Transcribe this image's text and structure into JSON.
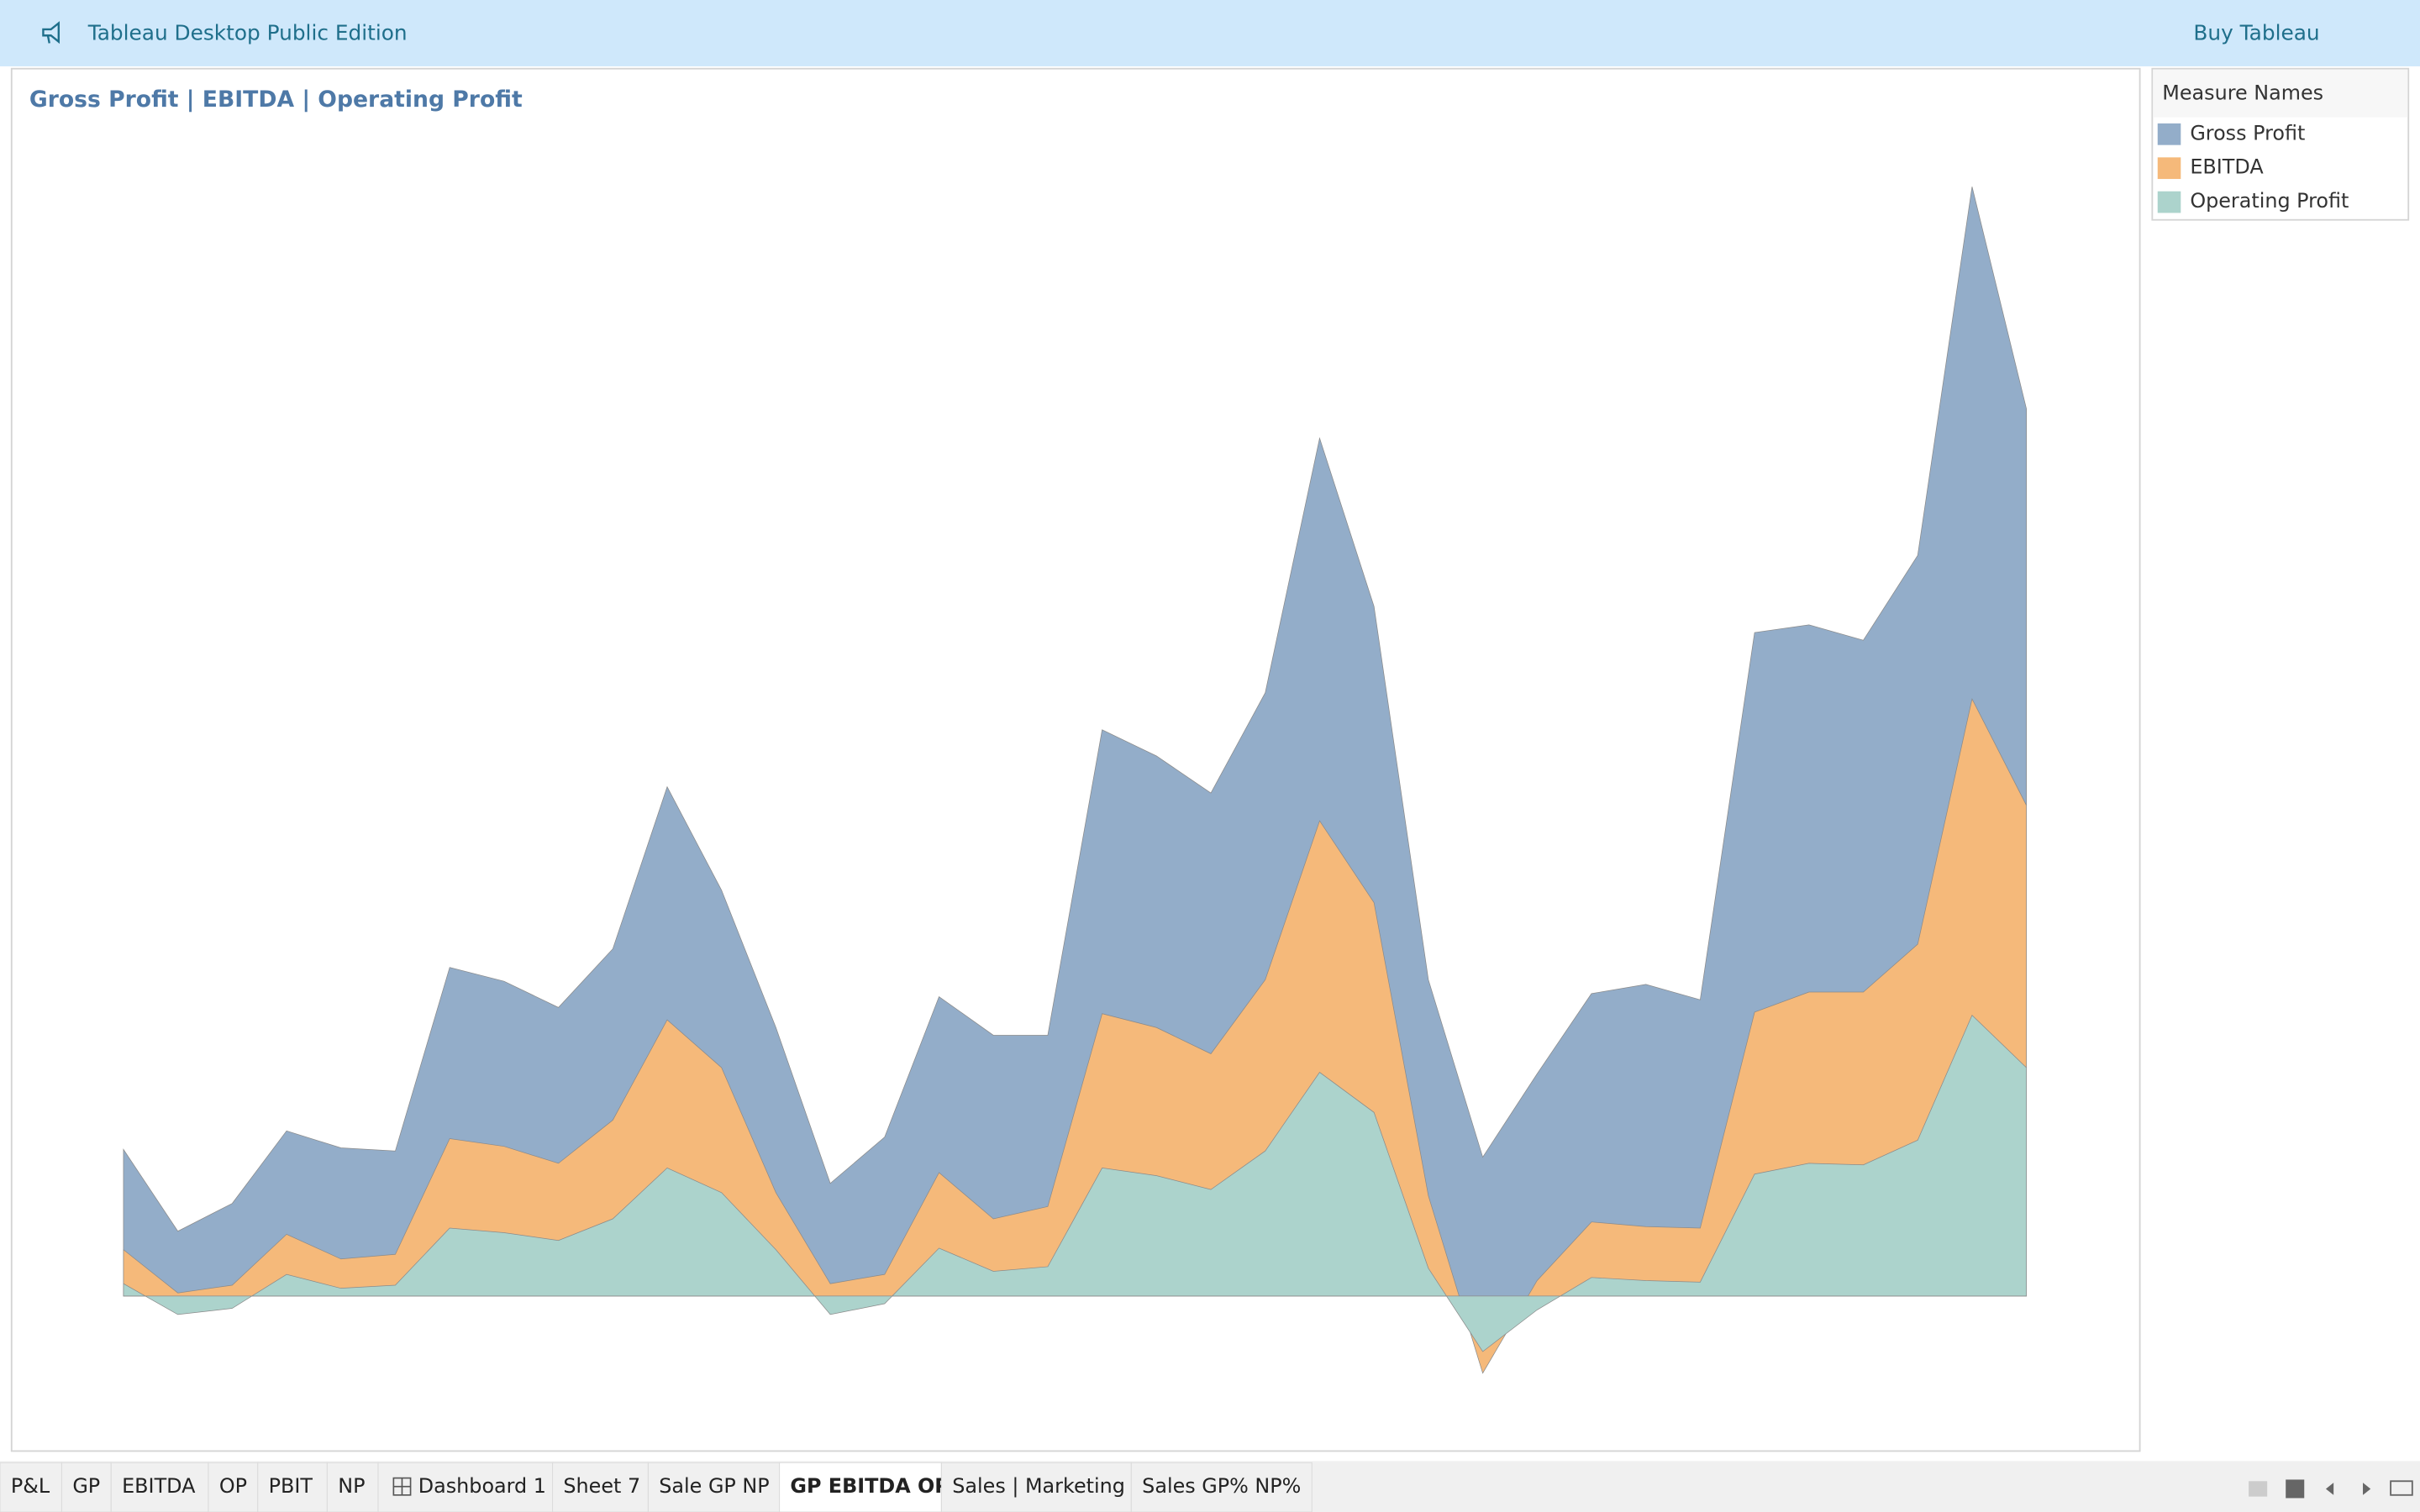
{
  "header": {
    "title": "Tableau Desktop Public Edition",
    "button": "Buy Tableau"
  },
  "chart_data": {
    "type": "area",
    "title": "Gross Profit | EBITDA | Operating Profit",
    "legend_title": "Measure Names",
    "legend": "right",
    "categories": [
      null,
      null,
      null,
      null,
      null,
      null,
      null,
      null,
      null,
      null,
      null,
      null,
      null,
      null,
      null,
      null,
      null,
      null,
      null,
      null,
      null,
      null,
      null,
      null,
      null,
      null,
      null,
      null,
      null,
      null,
      null,
      null,
      null,
      null,
      null,
      null
    ],
    "ylim": [
      -90,
      745
    ],
    "series": [
      {
        "name": "Gross Profit",
        "color": "#93adc9",
        "values": [
          95,
          42,
          60,
          107,
          96,
          94,
          213,
          204,
          187,
          225,
          330,
          263,
          174,
          73,
          103,
          194,
          169,
          169,
          367,
          350,
          326,
          391,
          556,
          447,
          205,
          90,
          144,
          196,
          202,
          192,
          430,
          435,
          425,
          480,
          719,
          575
        ]
      },
      {
        "name": "EBITDA",
        "color": "#f5b97a",
        "values": [
          30,
          2,
          7,
          40,
          24,
          27,
          102,
          97,
          86,
          114,
          179,
          148,
          67,
          8,
          14,
          80,
          50,
          58,
          183,
          174,
          157,
          205,
          308,
          255,
          65,
          -50,
          10,
          48,
          45,
          44,
          184,
          197,
          197,
          228,
          387,
          318
        ]
      },
      {
        "name": "Operating Profit",
        "color": "#acd3cc",
        "values": [
          8,
          -12,
          -8,
          14,
          5,
          7,
          44,
          41,
          36,
          50,
          83,
          67,
          30,
          -12,
          -5,
          31,
          16,
          19,
          83,
          78,
          69,
          94,
          145,
          119,
          18,
          -36,
          -9,
          12,
          10,
          9,
          79,
          86,
          85,
          101,
          182,
          148
        ]
      }
    ]
  },
  "tabs": {
    "items": [
      "P&L",
      "GP",
      "EBITDA",
      "OP",
      "PBIT",
      "NP",
      "Dashboard 1",
      "Sheet 7",
      "Sale GP NP",
      "GP EBITDA OP",
      "Sales | Marketing",
      "Sales GP% NP%"
    ],
    "active": 9
  }
}
